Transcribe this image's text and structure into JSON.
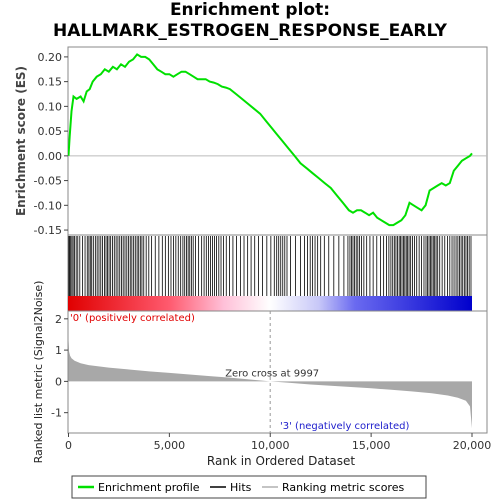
{
  "chart_data": {
    "type": "line",
    "title_line1": "Enrichment plot:",
    "title_line2": "HALLMARK_ESTROGEN_RESPONSE_EARLY",
    "xlabel": "Rank in Ordered Dataset",
    "xlim": [
      0,
      20500
    ],
    "x_ticks": [
      0,
      5000,
      10000,
      15000,
      20000
    ],
    "x_tick_labels": [
      "0",
      "5,000",
      "10,000",
      "15,000",
      "20,000"
    ],
    "es_panel": {
      "ylabel": "Enrichment score (ES)",
      "ylim": [
        -0.16,
        0.22
      ],
      "y_ticks": [
        0.2,
        0.15,
        0.1,
        0.05,
        0.0,
        -0.05,
        -0.1,
        -0.15
      ],
      "y_tick_labels": [
        "0.20",
        "0.15",
        "0.10",
        "0.05",
        "0.00",
        "-0.05",
        "-0.10",
        "-0.15"
      ],
      "line_color": "#00e000",
      "series": [
        {
          "x": [
            0,
            60,
            150,
            250,
            400,
            600,
            750,
            900,
            1050,
            1200,
            1400,
            1600,
            1800,
            2000,
            2200,
            2400,
            2600,
            2800,
            3000,
            3200,
            3400,
            3600,
            3800,
            4000,
            4200,
            4400,
            4600,
            4800,
            5000,
            5200,
            5400,
            5600,
            5800,
            6000,
            6200,
            6400,
            6600,
            6800,
            7000,
            7200,
            7400,
            7600,
            7800,
            8000,
            8300,
            8600,
            8900,
            9200,
            9500,
            9800,
            10000,
            10300,
            10600,
            10900,
            11200,
            11500,
            11800,
            12100,
            12400,
            12700,
            13000,
            13300,
            13600,
            13900,
            14100,
            14300,
            14500,
            14700,
            14900,
            15100,
            15300,
            15500,
            15700,
            15900,
            16100,
            16300,
            16500,
            16700,
            16900,
            17100,
            17300,
            17500,
            17700,
            17900,
            18100,
            18300,
            18500,
            18700,
            18900,
            19100,
            19300,
            19500,
            19700,
            19900,
            20000
          ],
          "y": [
            0.0,
            0.04,
            0.09,
            0.12,
            0.115,
            0.12,
            0.11,
            0.13,
            0.135,
            0.15,
            0.16,
            0.165,
            0.175,
            0.17,
            0.18,
            0.175,
            0.185,
            0.18,
            0.19,
            0.195,
            0.205,
            0.2,
            0.2,
            0.195,
            0.185,
            0.175,
            0.17,
            0.165,
            0.165,
            0.16,
            0.165,
            0.17,
            0.17,
            0.165,
            0.16,
            0.155,
            0.155,
            0.155,
            0.15,
            0.148,
            0.145,
            0.14,
            0.138,
            0.135,
            0.125,
            0.115,
            0.105,
            0.095,
            0.085,
            0.07,
            0.06,
            0.045,
            0.03,
            0.015,
            0.0,
            -0.015,
            -0.025,
            -0.035,
            -0.045,
            -0.055,
            -0.065,
            -0.08,
            -0.095,
            -0.11,
            -0.115,
            -0.11,
            -0.11,
            -0.115,
            -0.12,
            -0.115,
            -0.125,
            -0.13,
            -0.135,
            -0.14,
            -0.14,
            -0.135,
            -0.13,
            -0.12,
            -0.095,
            -0.1,
            -0.105,
            -0.11,
            -0.1,
            -0.07,
            -0.065,
            -0.06,
            -0.055,
            -0.06,
            -0.055,
            -0.03,
            -0.02,
            -0.01,
            -0.005,
            0.0,
            0.005
          ]
        }
      ]
    },
    "hits_panel": {
      "hit_ranks": [
        20,
        60,
        110,
        170,
        230,
        300,
        380,
        460,
        560,
        700,
        820,
        930,
        1010,
        1080,
        1150,
        1230,
        1330,
        1420,
        1510,
        1600,
        1690,
        1780,
        1860,
        1930,
        2010,
        2090,
        2180,
        2270,
        2360,
        2450,
        2540,
        2630,
        2710,
        2800,
        2890,
        2980,
        3060,
        3140,
        3230,
        3310,
        3400,
        3480,
        3560,
        3640,
        3730,
        3850,
        3980,
        4120,
        4300,
        4480,
        4650,
        4800,
        4950,
        5080,
        5200,
        5320,
        5440,
        5560,
        5670,
        5760,
        5850,
        5930,
        6010,
        6090,
        6180,
        6300,
        6450,
        6600,
        6720,
        6830,
        6940,
        7040,
        7140,
        7240,
        7340,
        7450,
        7560,
        7680,
        7820,
        7980,
        8150,
        8330,
        8520,
        8700,
        8880,
        9050,
        9230,
        9420,
        9620,
        9830,
        10030,
        10200,
        10320,
        10420,
        10520,
        10620,
        10720,
        10830,
        11000,
        11250,
        11500,
        11700,
        11850,
        11980,
        12100,
        12220,
        12350,
        12500,
        12680,
        12900,
        13150,
        13400,
        13650,
        13850,
        13950,
        14030,
        14100,
        14180,
        14260,
        14340,
        14420,
        14520,
        14640,
        14780,
        14940,
        15100,
        15280,
        15460,
        15620,
        15760,
        15880,
        15980,
        16070,
        16150,
        16230,
        16310,
        16390,
        16460,
        16530,
        16600,
        16670,
        16740,
        16810,
        16880,
        16960,
        17050,
        17150,
        17260,
        17380,
        17500,
        17620,
        17720,
        17800,
        17870,
        17940,
        18010,
        18080,
        18150,
        18220,
        18300,
        18400,
        18520,
        18650,
        18780,
        18900,
        19010,
        19110,
        19210,
        19300,
        19380,
        19460,
        19540,
        19620,
        19700,
        19780,
        19860,
        19950
      ],
      "gradient_stops": [
        {
          "offset": 0.0,
          "color": "#e00000"
        },
        {
          "offset": 0.25,
          "color": "#ff5a6e"
        },
        {
          "offset": 0.385,
          "color": "#ffc0d8"
        },
        {
          "offset": 0.5,
          "color": "#ffffff"
        },
        {
          "offset": 0.62,
          "color": "#c8c8f8"
        },
        {
          "offset": 0.71,
          "color": "#6a6af0"
        },
        {
          "offset": 1.0,
          "color": "#0000cc"
        }
      ]
    },
    "metric_panel": {
      "ylabel": "Ranked list metric (Signal2Noise)",
      "ylim": [
        -1.65,
        2.25
      ],
      "y_ticks": [
        2,
        1,
        0,
        -1
      ],
      "y_tick_labels": [
        "2",
        "1",
        "0",
        "-1"
      ],
      "fill_color": "#a8a8a8",
      "x": [
        0,
        30,
        80,
        150,
        300,
        600,
        1000,
        2000,
        3000,
        4000,
        5000,
        6000,
        7000,
        8000,
        9000,
        9997,
        11000,
        12000,
        13000,
        14000,
        15000,
        16000,
        17000,
        18000,
        18800,
        19300,
        19700,
        19900,
        20000
      ],
      "y": [
        1.3,
        0.95,
        0.82,
        0.74,
        0.66,
        0.58,
        0.52,
        0.44,
        0.38,
        0.32,
        0.27,
        0.22,
        0.17,
        0.12,
        0.06,
        0.0,
        -0.05,
        -0.1,
        -0.14,
        -0.18,
        -0.22,
        -0.27,
        -0.32,
        -0.38,
        -0.45,
        -0.52,
        -0.62,
        -0.8,
        -1.5
      ],
      "zero_cross_rank": 9997,
      "zero_cross_label": "Zero cross at 9997",
      "pos_label": "'0' (positively correlated)",
      "neg_label": "'3' (negatively correlated)",
      "pos_label_color": "#e00000",
      "neg_label_color": "#2020cc"
    },
    "legend": {
      "placement": "bottom",
      "items": [
        {
          "label": "Enrichment profile",
          "color": "#00e000"
        },
        {
          "label": "Hits",
          "color": "#000000"
        },
        {
          "label": "Ranking metric scores",
          "color": "#b0b0b0"
        }
      ]
    }
  }
}
